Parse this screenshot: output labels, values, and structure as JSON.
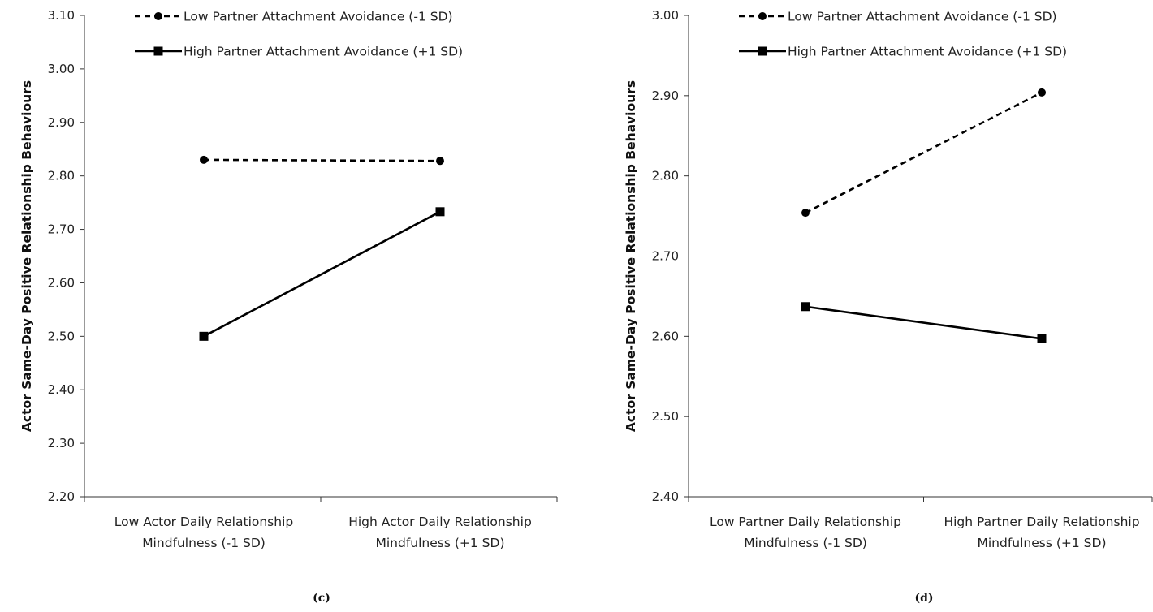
{
  "chart_data": [
    {
      "type": "line",
      "panel_label": "(c)",
      "ylabel": "Actor Same-Day Positive Relationship Behaviours",
      "ylim": [
        2.2,
        3.1
      ],
      "y_ticks": [
        "2.20",
        "2.30",
        "2.40",
        "2.50",
        "2.60",
        "2.70",
        "2.80",
        "2.90",
        "3.00",
        "3.10"
      ],
      "categories": [
        [
          "Low Actor Daily Relationship",
          "Mindfulness (-1 SD)"
        ],
        [
          "High Actor Daily Relationship",
          "Mindfulness (+1 SD)"
        ]
      ],
      "legend_position": "top",
      "series": [
        {
          "name": "Low Partner Attachment Avoidance (-1 SD)",
          "values": [
            2.83,
            2.828
          ],
          "line": "dashed",
          "marker": "circle"
        },
        {
          "name": "High Partner Attachment Avoidance (+1 SD)",
          "values": [
            2.5,
            2.733
          ],
          "line": "solid",
          "marker": "square"
        }
      ]
    },
    {
      "type": "line",
      "panel_label": "(d)",
      "ylabel": "Actor Same-Day Positive Relationship Behaviours",
      "ylim": [
        2.4,
        3.0
      ],
      "y_ticks": [
        "2.40",
        "2.50",
        "2.60",
        "2.70",
        "2.80",
        "2.90",
        "3.00"
      ],
      "categories": [
        [
          "Low Partner Daily Relationship",
          "Mindfulness (-1 SD)"
        ],
        [
          "High Partner Daily Relationship",
          "Mindfulness (+1 SD)"
        ]
      ],
      "legend_position": "top",
      "series": [
        {
          "name": "Low Partner Attachment Avoidance (-1 SD)",
          "values": [
            2.754,
            2.904
          ],
          "line": "dashed",
          "marker": "circle"
        },
        {
          "name": "High Partner Attachment Avoidance (+1 SD)",
          "values": [
            2.637,
            2.597
          ],
          "line": "solid",
          "marker": "square"
        }
      ]
    }
  ]
}
